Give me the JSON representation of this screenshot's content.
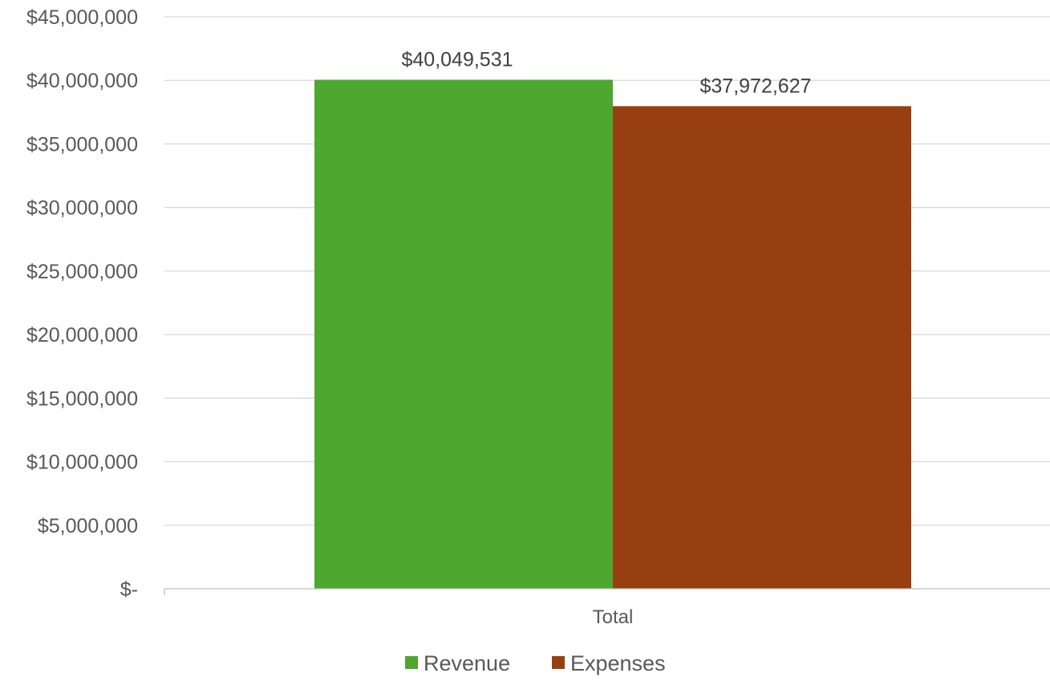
{
  "chart_data": {
    "type": "bar",
    "categories": [
      "Total"
    ],
    "series": [
      {
        "name": "Revenue",
        "values": [
          40049531
        ],
        "color": "#4EA72E",
        "data_label": "$40,049,531"
      },
      {
        "name": "Expenses",
        "values": [
          37972627
        ],
        "color": "#973F10",
        "data_label": "$37,972,627"
      }
    ],
    "ylim": [
      0,
      45000000
    ],
    "yticks": [
      {
        "value": 0,
        "label": "$-"
      },
      {
        "value": 5000000,
        "label": "$5,000,000"
      },
      {
        "value": 10000000,
        "label": "$10,000,000"
      },
      {
        "value": 15000000,
        "label": "$15,000,000"
      },
      {
        "value": 20000000,
        "label": "$20,000,000"
      },
      {
        "value": 25000000,
        "label": "$25,000,000"
      },
      {
        "value": 30000000,
        "label": "$30,000,000"
      },
      {
        "value": 35000000,
        "label": "$35,000,000"
      },
      {
        "value": 40000000,
        "label": "$40,000,000"
      },
      {
        "value": 45000000,
        "label": "$45,000,000"
      }
    ],
    "grid": true,
    "legend_position": "bottom",
    "title": "",
    "xlabel": "",
    "ylabel": ""
  }
}
